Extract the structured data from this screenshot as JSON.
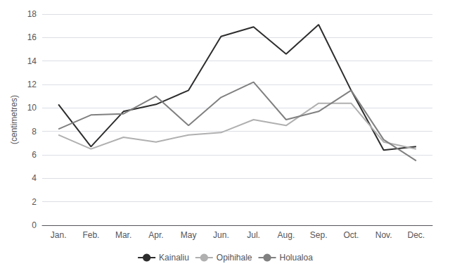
{
  "chart_data": {
    "type": "line",
    "categories": [
      "Jan.",
      "Feb.",
      "Mar.",
      "Apr.",
      "May",
      "Jun.",
      "Jul.",
      "Aug.",
      "Sep.",
      "Oct.",
      "Nov.",
      "Dec."
    ],
    "series": [
      {
        "name": "Kainaliu",
        "color": "#2d2d2d",
        "values": [
          10.3,
          6.7,
          9.7,
          10.3,
          11.5,
          16.1,
          16.9,
          14.6,
          17.1,
          11.5,
          6.4,
          6.7
        ]
      },
      {
        "name": "Opihihale",
        "color": "#b0b0b0",
        "values": [
          7.7,
          6.5,
          7.5,
          7.1,
          7.7,
          7.9,
          9.0,
          8.5,
          10.4,
          10.4,
          7.1,
          6.5
        ]
      },
      {
        "name": "Holualoa",
        "color": "#808080",
        "values": [
          8.2,
          9.4,
          9.5,
          11.0,
          8.5,
          10.9,
          12.2,
          9.0,
          9.7,
          11.5,
          7.3,
          5.5
        ]
      }
    ],
    "ylabel": "(centimetres)",
    "ylim": [
      0,
      18
    ],
    "yticks": [
      0,
      2,
      4,
      6,
      8,
      10,
      12,
      14,
      16,
      18
    ],
    "grid": true,
    "legend": "bottom"
  }
}
